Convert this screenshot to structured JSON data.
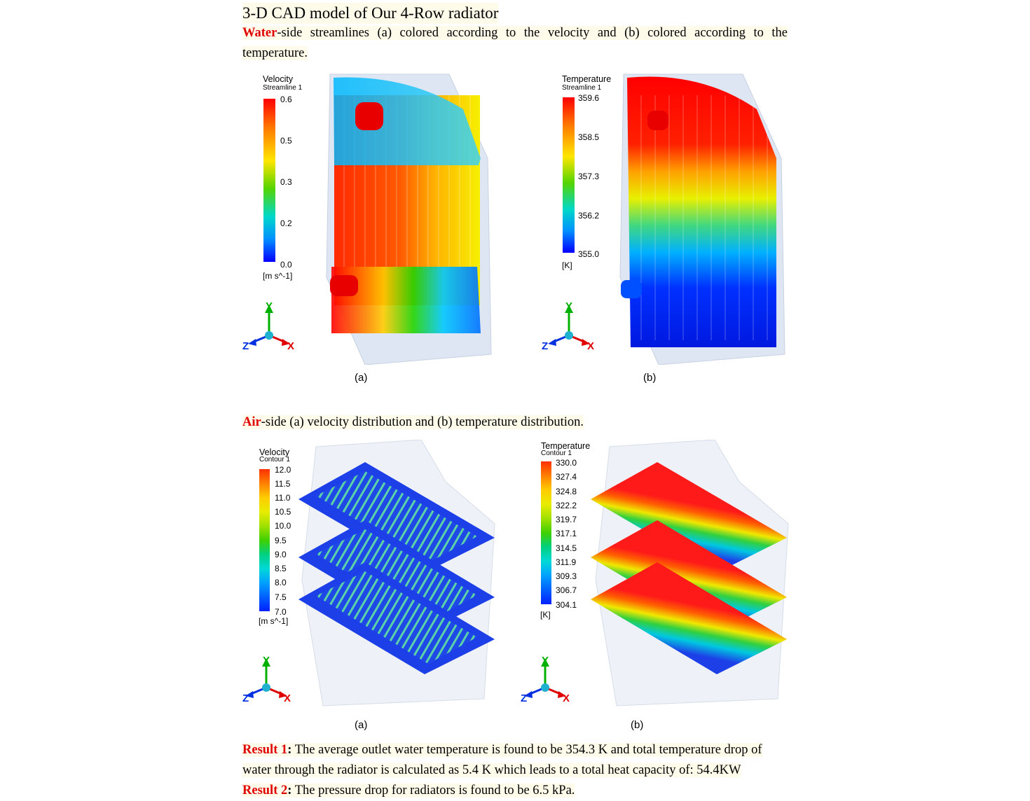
{
  "heading": "3-D CAD model of Our 4-Row radiator",
  "water_para": {
    "keyword": "Water",
    "rest": "-side streamlines (a) colored according to the velocity and (b) colored according to the temperature."
  },
  "fig1a": {
    "legend_title": "Velocity",
    "legend_sub": "Streamline 1",
    "ticks": [
      "0.6",
      "0.5",
      "0.3",
      "0.2",
      "0.0"
    ],
    "unit": "[m s^-1]",
    "caption": "(a)"
  },
  "fig1b": {
    "legend_title": "Temperature",
    "legend_sub": "Streamline 1",
    "ticks": [
      "359.6",
      "358.5",
      "357.3",
      "356.2",
      "355.0"
    ],
    "unit": "[K]",
    "caption": "(b)"
  },
  "air_para": {
    "keyword": "Air",
    "rest": "-side (a) velocity distribution and (b) temperature distribution."
  },
  "fig2a": {
    "legend_title": "Velocity",
    "legend_sub": "Contour 1",
    "ticks": [
      "12.0",
      "11.5",
      "11.0",
      "10.5",
      "10.0",
      "9.5",
      "9.0",
      "8.5",
      "8.0",
      "7.5",
      "7.0"
    ],
    "unit": "[m s^-1]",
    "caption": "(a)"
  },
  "fig2b": {
    "legend_title": "Temperature",
    "legend_sub": "Contour 1",
    "ticks": [
      "330.0",
      "327.4",
      "324.8",
      "322.2",
      "319.7",
      "317.1",
      "314.5",
      "311.9",
      "309.3",
      "306.7",
      "304.1"
    ],
    "unit": "[K]",
    "caption": "(b)"
  },
  "axes": {
    "y": "Y",
    "x": "X",
    "z": "Z"
  },
  "result1": {
    "label": "Result 1",
    "colon": ":",
    "text": " The average outlet water temperature is found to be 354.3 K and total temperature drop of water through the radiator is calculated as 5.4 K which leads to a total heat capacity of: 54.4KW"
  },
  "result2": {
    "label": "Result 2",
    "colon": ":",
    "text": " The pressure drop for radiators is found to be 6.5 kPa."
  },
  "colors": {
    "accent_red": "#e00000",
    "highlight": "#fffbea"
  }
}
